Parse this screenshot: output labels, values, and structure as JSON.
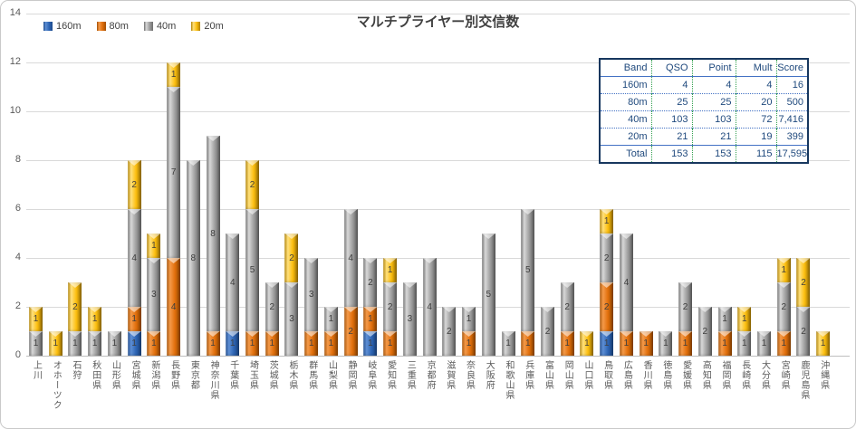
{
  "title": "マルチプライヤー別交信数",
  "legend": [
    {
      "label": "160m",
      "color": "#2F66B5"
    },
    {
      "label": "80m",
      "color": "#E2700D"
    },
    {
      "label": "40m",
      "color": "#A0A0A0"
    },
    {
      "label": "20m",
      "color": "#FDC011"
    }
  ],
  "chart_data": {
    "type": "bar",
    "stacked": true,
    "title": "マルチプライヤー別交信数",
    "xlabel": "",
    "ylabel": "",
    "ylim": [
      0,
      14
    ],
    "yticks": [
      0,
      2,
      4,
      6,
      8,
      10,
      12,
      14
    ],
    "grid": true,
    "legend_position": "top-left",
    "categories": [
      "上川",
      "オホーツク",
      "石狩",
      "秋田県",
      "山形県",
      "宮城県",
      "新潟県",
      "長野県",
      "東京都",
      "神奈川県",
      "千葉県",
      "埼玉県",
      "茨城県",
      "栃木県",
      "群馬県",
      "山梨県",
      "静岡県",
      "岐阜県",
      "愛知県",
      "三重県",
      "京都府",
      "滋賀県",
      "奈良県",
      "大阪府",
      "和歌山県",
      "兵庫県",
      "富山県",
      "岡山県",
      "山口県",
      "鳥取県",
      "広島県",
      "香川県",
      "徳島県",
      "愛媛県",
      "高知県",
      "福岡県",
      "長崎県",
      "大分県",
      "宮崎県",
      "鹿児島県",
      "沖縄県"
    ],
    "series": [
      {
        "name": "160m",
        "color": "#2F66B5",
        "values": [
          0,
          0,
          0,
          0,
          0,
          1,
          0,
          0,
          0,
          0,
          1,
          0,
          0,
          0,
          0,
          0,
          0,
          1,
          0,
          0,
          0,
          0,
          0,
          0,
          0,
          0,
          0,
          0,
          0,
          1,
          0,
          0,
          0,
          0,
          0,
          0,
          0,
          0,
          0,
          0,
          0
        ]
      },
      {
        "name": "80m",
        "color": "#E2700D",
        "values": [
          0,
          0,
          0,
          0,
          0,
          1,
          1,
          4,
          0,
          1,
          0,
          1,
          1,
          0,
          1,
          1,
          2,
          1,
          1,
          0,
          0,
          0,
          1,
          0,
          0,
          1,
          0,
          1,
          0,
          2,
          1,
          1,
          0,
          1,
          0,
          1,
          0,
          0,
          1,
          0,
          0
        ]
      },
      {
        "name": "40m",
        "color": "#A0A0A0",
        "values": [
          1,
          0,
          1,
          1,
          1,
          4,
          3,
          7,
          8,
          8,
          4,
          5,
          2,
          3,
          3,
          1,
          4,
          2,
          2,
          3,
          4,
          2,
          1,
          5,
          1,
          5,
          2,
          2,
          0,
          2,
          4,
          0,
          1,
          2,
          2,
          1,
          1,
          1,
          2,
          2,
          0
        ]
      },
      {
        "name": "20m",
        "color": "#FDC011",
        "values": [
          1,
          1,
          2,
          1,
          0,
          2,
          1,
          1,
          0,
          0,
          0,
          2,
          0,
          2,
          0,
          0,
          0,
          0,
          1,
          0,
          0,
          0,
          0,
          0,
          0,
          0,
          0,
          0,
          1,
          1,
          0,
          0,
          0,
          0,
          0,
          0,
          1,
          0,
          1,
          2,
          1
        ]
      }
    ]
  },
  "summary_table": {
    "headers": [
      "Band",
      "QSO",
      "Point",
      "Mult",
      "Score"
    ],
    "rows": [
      [
        "160m",
        "4",
        "4",
        "4",
        "16"
      ],
      [
        "80m",
        "25",
        "25",
        "20",
        "500"
      ],
      [
        "40m",
        "103",
        "103",
        "72",
        "7,416"
      ],
      [
        "20m",
        "21",
        "21",
        "19",
        "399"
      ],
      [
        "Total",
        "153",
        "153",
        "115",
        "17,595"
      ]
    ]
  }
}
